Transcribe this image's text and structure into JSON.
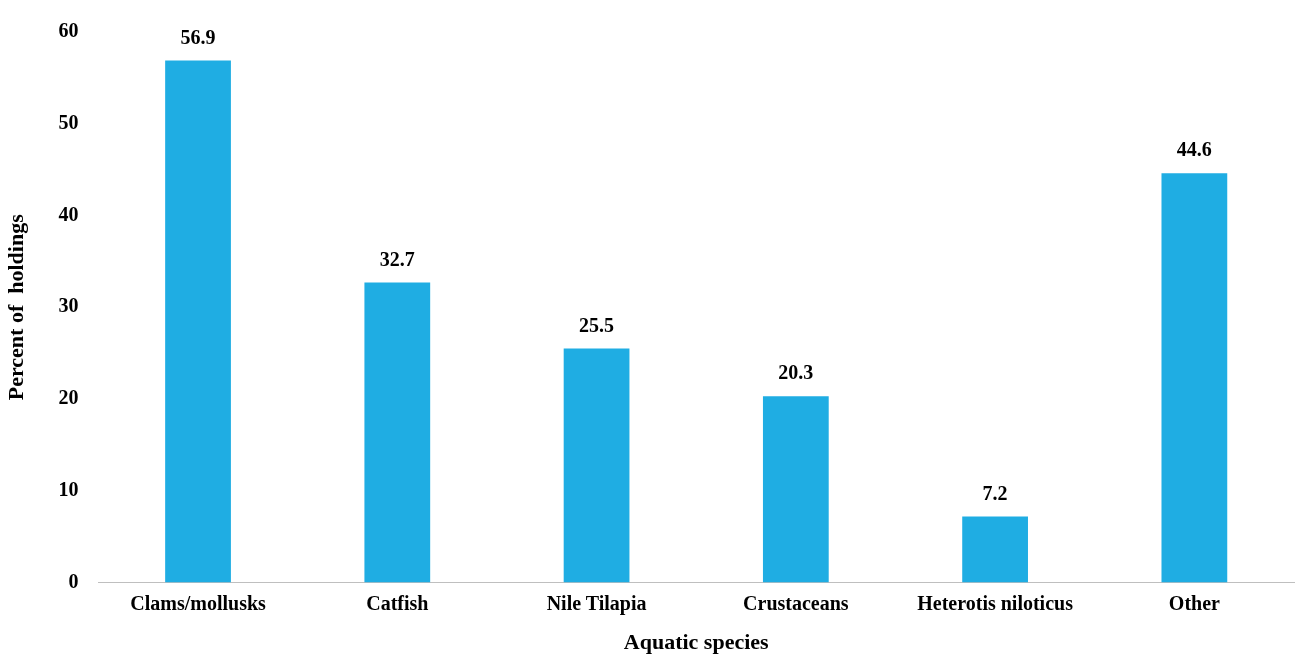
{
  "chart_data": {
    "type": "bar",
    "xlabel": "Aquatic species",
    "ylabel": "Percent of  holdings",
    "categories": [
      "Clams/mollusks",
      "Catfish",
      "Nile Tilapia",
      "Crustaceans",
      "Heterotis niloticus",
      "Other"
    ],
    "values": [
      56.9,
      32.7,
      25.5,
      20.3,
      7.2,
      44.6
    ],
    "color": "#1fade3",
    "ylim": [
      0,
      60
    ],
    "yticks": [
      0,
      10,
      20,
      30,
      40,
      50,
      60
    ],
    "grid": false,
    "legend": false,
    "data_labels": true
  }
}
